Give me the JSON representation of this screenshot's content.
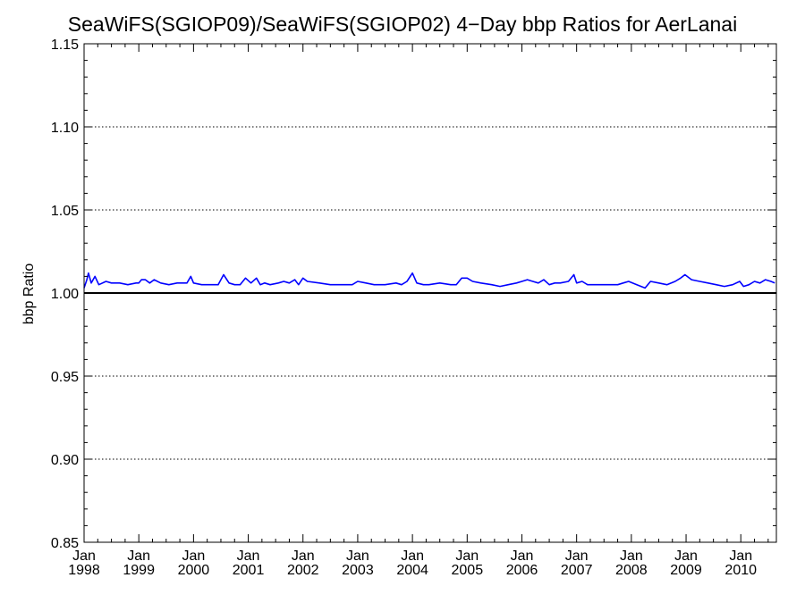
{
  "chart_data": {
    "type": "line",
    "title": "SeaWiFS(SGIOP09)/SeaWiFS(SGIOP02) 4−Day bbp Ratios for AerLanai",
    "ylabel": "bbp Ratio",
    "xlabel": "",
    "ylim": [
      0.85,
      1.15
    ],
    "xlim": [
      1998.0,
      2010.65
    ],
    "y_ticks": [
      "0.85",
      "0.90",
      "0.95",
      "1.00",
      "1.05",
      "1.10",
      "1.15"
    ],
    "y_tick_values": [
      0.85,
      0.9,
      0.95,
      1.0,
      1.05,
      1.1,
      1.15
    ],
    "x_ticks": [
      {
        "month": "Jan",
        "year": "1998",
        "value": 1998
      },
      {
        "month": "Jan",
        "year": "1999",
        "value": 1999
      },
      {
        "month": "Jan",
        "year": "2000",
        "value": 2000
      },
      {
        "month": "Jan",
        "year": "2001",
        "value": 2001
      },
      {
        "month": "Jan",
        "year": "2002",
        "value": 2002
      },
      {
        "month": "Jan",
        "year": "2003",
        "value": 2003
      },
      {
        "month": "Jan",
        "year": "2004",
        "value": 2004
      },
      {
        "month": "Jan",
        "year": "2005",
        "value": 2005
      },
      {
        "month": "Jan",
        "year": "2006",
        "value": 2006
      },
      {
        "month": "Jan",
        "year": "2007",
        "value": 2007
      },
      {
        "month": "Jan",
        "year": "2008",
        "value": 2008
      },
      {
        "month": "Jan",
        "year": "2009",
        "value": 2009
      },
      {
        "month": "Jan",
        "year": "2010",
        "value": 2010
      }
    ],
    "grid": "horizontal dotted",
    "reference_line": 1.0,
    "series": [
      {
        "color": "#0000ff",
        "points": [
          [
            1998.0,
            1.003
          ],
          [
            1998.05,
            1.008
          ],
          [
            1998.08,
            1.012
          ],
          [
            1998.13,
            1.006
          ],
          [
            1998.2,
            1.01
          ],
          [
            1998.27,
            1.005
          ],
          [
            1998.4,
            1.007
          ],
          [
            1998.5,
            1.006
          ],
          [
            1998.65,
            1.006
          ],
          [
            1998.8,
            1.005
          ],
          [
            1998.95,
            1.006
          ],
          [
            1999.0,
            1.006
          ],
          [
            1999.05,
            1.008
          ],
          [
            1999.12,
            1.008
          ],
          [
            1999.2,
            1.006
          ],
          [
            1999.28,
            1.008
          ],
          [
            1999.4,
            1.006
          ],
          [
            1999.55,
            1.005
          ],
          [
            1999.7,
            1.006
          ],
          [
            1999.88,
            1.006
          ],
          [
            1999.95,
            1.01
          ],
          [
            2000.0,
            1.006
          ],
          [
            2000.15,
            1.005
          ],
          [
            2000.3,
            1.005
          ],
          [
            2000.45,
            1.005
          ],
          [
            2000.55,
            1.011
          ],
          [
            2000.65,
            1.006
          ],
          [
            2000.75,
            1.005
          ],
          [
            2000.85,
            1.005
          ],
          [
            2000.95,
            1.009
          ],
          [
            2001.05,
            1.006
          ],
          [
            2001.15,
            1.009
          ],
          [
            2001.22,
            1.005
          ],
          [
            2001.3,
            1.006
          ],
          [
            2001.4,
            1.005
          ],
          [
            2001.55,
            1.006
          ],
          [
            2001.65,
            1.007
          ],
          [
            2001.75,
            1.006
          ],
          [
            2001.85,
            1.008
          ],
          [
            2001.92,
            1.005
          ],
          [
            2002.0,
            1.009
          ],
          [
            2002.08,
            1.007
          ],
          [
            2002.3,
            1.006
          ],
          [
            2002.5,
            1.005
          ],
          [
            2002.7,
            1.005
          ],
          [
            2002.9,
            1.005
          ],
          [
            2003.0,
            1.007
          ],
          [
            2003.15,
            1.006
          ],
          [
            2003.3,
            1.005
          ],
          [
            2003.5,
            1.005
          ],
          [
            2003.7,
            1.006
          ],
          [
            2003.8,
            1.005
          ],
          [
            2003.9,
            1.007
          ],
          [
            2004.0,
            1.012
          ],
          [
            2004.08,
            1.006
          ],
          [
            2004.2,
            1.005
          ],
          [
            2004.3,
            1.005
          ],
          [
            2004.5,
            1.006
          ],
          [
            2004.7,
            1.005
          ],
          [
            2004.8,
            1.005
          ],
          [
            2004.9,
            1.009
          ],
          [
            2005.0,
            1.009
          ],
          [
            2005.1,
            1.007
          ],
          [
            2005.25,
            1.006
          ],
          [
            2005.45,
            1.005
          ],
          [
            2005.6,
            1.004
          ],
          [
            2005.75,
            1.005
          ],
          [
            2005.9,
            1.006
          ],
          [
            2006.0,
            1.007
          ],
          [
            2006.1,
            1.008
          ],
          [
            2006.2,
            1.007
          ],
          [
            2006.3,
            1.006
          ],
          [
            2006.4,
            1.008
          ],
          [
            2006.5,
            1.005
          ],
          [
            2006.6,
            1.006
          ],
          [
            2006.7,
            1.006
          ],
          [
            2006.85,
            1.007
          ],
          [
            2006.95,
            1.011
          ],
          [
            2007.0,
            1.006
          ],
          [
            2007.1,
            1.007
          ],
          [
            2007.2,
            1.005
          ],
          [
            2007.3,
            1.005
          ],
          [
            2007.45,
            1.005
          ],
          [
            2007.6,
            1.005
          ],
          [
            2007.75,
            1.005
          ],
          [
            2007.85,
            1.006
          ],
          [
            2007.95,
            1.007
          ],
          [
            2008.1,
            1.005
          ],
          [
            2008.25,
            1.003
          ],
          [
            2008.35,
            1.007
          ],
          [
            2008.5,
            1.006
          ],
          [
            2008.65,
            1.005
          ],
          [
            2008.8,
            1.007
          ],
          [
            2008.9,
            1.009
          ],
          [
            2008.98,
            1.011
          ],
          [
            2009.1,
            1.008
          ],
          [
            2009.25,
            1.007
          ],
          [
            2009.4,
            1.006
          ],
          [
            2009.55,
            1.005
          ],
          [
            2009.7,
            1.004
          ],
          [
            2009.85,
            1.005
          ],
          [
            2009.98,
            1.007
          ],
          [
            2010.05,
            1.004
          ],
          [
            2010.15,
            1.005
          ],
          [
            2010.25,
            1.007
          ],
          [
            2010.35,
            1.006
          ],
          [
            2010.45,
            1.008
          ],
          [
            2010.55,
            1.007
          ],
          [
            2010.62,
            1.006
          ]
        ]
      }
    ],
    "colors": {
      "series": "#0000ff",
      "axes": "#000000",
      "reference": "#000000"
    }
  }
}
